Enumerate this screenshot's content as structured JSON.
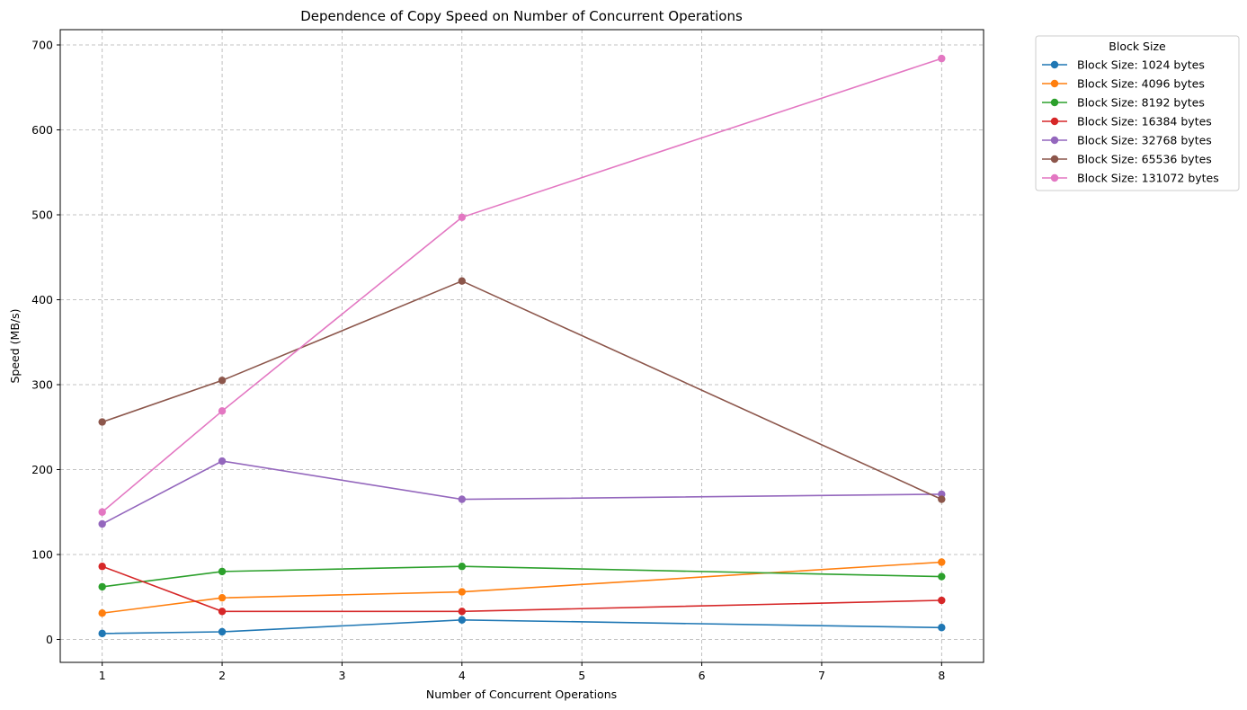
{
  "chart_data": {
    "type": "line",
    "title": "Dependence of Copy Speed on Number of Concurrent Operations",
    "xlabel": "Number of Concurrent Operations",
    "ylabel": "Speed (MB/s)",
    "xlim": [
      0.65,
      8.35
    ],
    "ylim": [
      -27,
      718
    ],
    "xticks": [
      1,
      2,
      3,
      4,
      5,
      6,
      7,
      8
    ],
    "yticks": [
      0,
      100,
      200,
      300,
      400,
      500,
      600,
      700
    ],
    "grid": true,
    "legend_title": "Block Size",
    "legend_position": "outside-top-right",
    "x": [
      1,
      2,
      4,
      8
    ],
    "series": [
      {
        "name": "Block Size: 1024 bytes",
        "color": "#1f77b4",
        "values": [
          7,
          9,
          23,
          14
        ]
      },
      {
        "name": "Block Size: 4096 bytes",
        "color": "#ff7f0e",
        "values": [
          31,
          49,
          56,
          91
        ]
      },
      {
        "name": "Block Size: 8192 bytes",
        "color": "#2ca02c",
        "values": [
          62,
          80,
          86,
          74
        ]
      },
      {
        "name": "Block Size: 16384 bytes",
        "color": "#d62728",
        "values": [
          86,
          33,
          33,
          46
        ]
      },
      {
        "name": "Block Size: 32768 bytes",
        "color": "#9467bd",
        "values": [
          136,
          210,
          165,
          171
        ]
      },
      {
        "name": "Block Size: 65536 bytes",
        "color": "#8c564b",
        "values": [
          256,
          305,
          422,
          165
        ]
      },
      {
        "name": "Block Size: 131072 bytes",
        "color": "#e377c2",
        "values": [
          150,
          269,
          497,
          684
        ]
      }
    ]
  }
}
